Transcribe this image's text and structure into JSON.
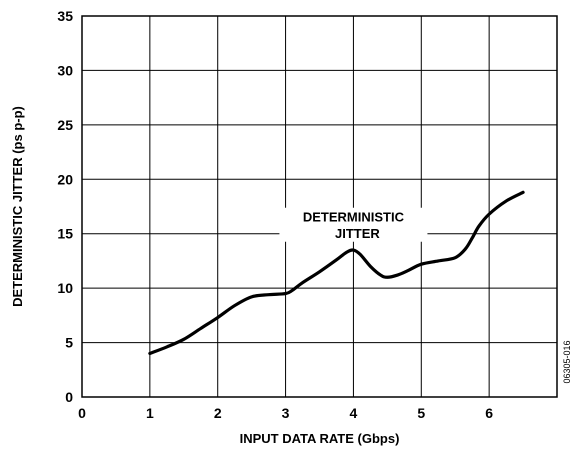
{
  "chart_data": {
    "type": "line",
    "xlabel": "INPUT DATA RATE (Gbps)",
    "ylabel": "DETERMINISTIC JITTER (ps p-p)",
    "xlim": [
      0,
      7
    ],
    "ylim": [
      0,
      35
    ],
    "x_ticks": [
      0,
      1,
      2,
      3,
      4,
      5,
      6
    ],
    "y_ticks": [
      0,
      5,
      10,
      15,
      20,
      25,
      30,
      35
    ],
    "grid": true,
    "series": [
      {
        "name": "",
        "x": [
          1.0,
          1.25,
          1.5,
          1.75,
          2.0,
          2.25,
          2.5,
          2.75,
          3.0,
          3.1,
          3.25,
          3.5,
          3.75,
          3.9,
          4.0,
          4.1,
          4.25,
          4.4,
          4.5,
          4.65,
          4.8,
          5.0,
          5.25,
          5.5,
          5.65,
          5.75,
          5.85,
          6.0,
          6.25,
          6.5
        ],
        "y": [
          4.0,
          4.6,
          5.3,
          6.3,
          7.3,
          8.4,
          9.2,
          9.4,
          9.5,
          9.8,
          10.5,
          11.5,
          12.6,
          13.3,
          13.5,
          13.1,
          12.0,
          11.2,
          11.0,
          11.2,
          11.6,
          12.2,
          12.5,
          12.8,
          13.6,
          14.6,
          15.7,
          16.8,
          18.0,
          18.8
        ]
      }
    ],
    "annotations": [
      {
        "line1": "DETERMINISTIC",
        "line2": "JITTER"
      }
    ],
    "figure_code": "06305-016"
  }
}
